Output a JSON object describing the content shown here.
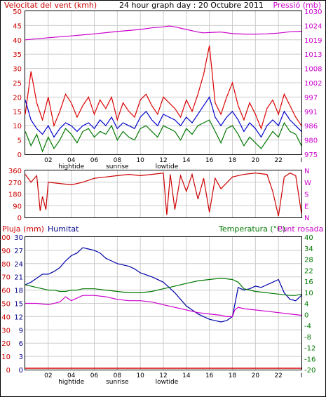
{
  "chart_data": [
    {
      "type": "line",
      "title": "24 hour graph day : 20 Octubre 2011",
      "left_axis_label": "Velocitat del vent (kmh)",
      "right_axis_label": "Pressió (mb)",
      "left_ticks": [
        "0",
        "5",
        "10",
        "15",
        "20",
        "25",
        "30",
        "35",
        "40",
        "45",
        "50"
      ],
      "right_ticks": [
        "975",
        "980",
        "986",
        "991",
        "997",
        "1002",
        "1008",
        "1013",
        "1019",
        "1024",
        "1030"
      ],
      "x_ticks": [
        "02",
        "04",
        "06",
        "08",
        "10",
        "12",
        "14",
        "16",
        "18",
        "20",
        "22"
      ],
      "event_labels": [
        {
          "text": "hightide",
          "x": 4
        },
        {
          "text": "sunrise",
          "x": 8
        },
        {
          "text": "lowtide",
          "x": 12.3
        }
      ],
      "xlim": [
        0,
        24
      ],
      "ylim": [
        0,
        50
      ],
      "y2lim": [
        975,
        1030
      ],
      "series": [
        {
          "color": "#cc00cc",
          "axis": "right",
          "x": [
            0,
            2,
            4,
            6,
            8,
            10,
            11,
            12,
            12.5,
            13,
            14,
            15,
            15.5,
            16,
            17,
            18,
            19,
            20,
            21,
            22,
            23,
            24
          ],
          "y": [
            1019,
            1019.8,
            1020.5,
            1021.3,
            1022.2,
            1023,
            1023.6,
            1024,
            1024.3,
            1024,
            1023,
            1022,
            1021.7,
            1021.8,
            1022,
            1021.4,
            1021.2,
            1021.2,
            1021.3,
            1021.6,
            1022.1,
            1022.3
          ]
        },
        {
          "color": "#dd0000",
          "axis": "left",
          "x": [
            0,
            0.5,
            1,
            1.5,
            2,
            2.5,
            3,
            3.5,
            4,
            4.5,
            5,
            5.5,
            6,
            6.5,
            7,
            7.5,
            8,
            8.5,
            9,
            9.5,
            10,
            10.5,
            11,
            11.5,
            12,
            12.5,
            13,
            13.5,
            14,
            14.5,
            15,
            15.5,
            16,
            16.5,
            17,
            17.5,
            18,
            18.5,
            19,
            19.5,
            20,
            20.5,
            21,
            21.5,
            22,
            22.5,
            23,
            23.5,
            24
          ],
          "y": [
            14,
            29,
            18,
            12,
            20,
            10,
            15,
            21,
            18,
            13,
            17,
            20,
            14,
            19,
            16,
            20,
            12,
            18,
            15,
            13,
            19,
            21,
            17,
            14,
            20,
            18,
            16,
            13,
            19,
            15,
            21,
            28,
            38,
            18,
            14,
            20,
            25,
            17,
            12,
            18,
            14,
            9,
            16,
            19,
            14,
            21,
            17,
            13,
            10
          ]
        },
        {
          "color": "#0000cc",
          "axis": "left",
          "x": [
            0,
            0.5,
            1,
            1.5,
            2,
            2.5,
            3,
            3.5,
            4,
            4.5,
            5,
            5.5,
            6,
            6.5,
            7,
            7.5,
            8,
            8.5,
            9,
            9.5,
            10,
            10.5,
            11,
            11.5,
            12,
            12.5,
            13,
            13.5,
            14,
            14.5,
            15,
            15.5,
            16,
            16.5,
            17,
            17.5,
            18,
            18.5,
            19,
            19.5,
            20,
            20.5,
            21,
            21.5,
            22,
            22.5,
            23,
            23.5,
            24
          ],
          "y": [
            19,
            12,
            9,
            7,
            10,
            6,
            9,
            11,
            10,
            8,
            10,
            11,
            9,
            12,
            10,
            13,
            9,
            11,
            10,
            9,
            13,
            15,
            12,
            10,
            14,
            13,
            12,
            10,
            13,
            11,
            14,
            17,
            20,
            13,
            10,
            13,
            15,
            12,
            8,
            11,
            9,
            6,
            10,
            12,
            10,
            15,
            12,
            10,
            8
          ]
        },
        {
          "color": "#007700",
          "axis": "left",
          "x": [
            0,
            0.5,
            1,
            1.5,
            2,
            2.5,
            3,
            3.5,
            4,
            4.5,
            5,
            5.5,
            6,
            6.5,
            7,
            7.5,
            8,
            8.5,
            9,
            9.5,
            10,
            10.5,
            11,
            11.5,
            12,
            12.5,
            13,
            13.5,
            14,
            14.5,
            15,
            15.5,
            16,
            16.5,
            17,
            17.5,
            18,
            18.5,
            19,
            19.5,
            20,
            20.5,
            21,
            21.5,
            22,
            22.5,
            23,
            23.5,
            24
          ],
          "y": [
            8,
            3,
            7,
            1,
            6,
            2,
            5,
            9,
            7,
            4,
            8,
            9,
            6,
            8,
            7,
            10,
            5,
            8,
            6,
            5,
            9,
            10,
            8,
            6,
            10,
            9,
            8,
            5,
            9,
            7,
            10,
            11,
            12,
            8,
            4,
            9,
            10,
            7,
            3,
            6,
            4,
            2,
            5,
            8,
            6,
            11,
            8,
            7,
            3
          ]
        }
      ]
    },
    {
      "type": "line",
      "left_ticks": [
        "0",
        "90",
        "180",
        "270",
        "360"
      ],
      "right_ticks": [
        "N",
        "E",
        "S",
        "W",
        "N"
      ],
      "ylim": [
        0,
        360
      ],
      "xlim": [
        0,
        24
      ],
      "series": [
        {
          "color": "#cc0000",
          "x": [
            0,
            0.5,
            1,
            1.3,
            1.5,
            1.8,
            2,
            3,
            4,
            5,
            6,
            7,
            8,
            9,
            10,
            11,
            12,
            12.3,
            12.6,
            13,
            13.5,
            14,
            14.5,
            15,
            15.5,
            16,
            16.5,
            17,
            18,
            19,
            20,
            21,
            21.5,
            22,
            22.5,
            23,
            23.5,
            24
          ],
          "y": [
            330,
            270,
            320,
            50,
            160,
            60,
            270,
            260,
            250,
            270,
            300,
            310,
            320,
            330,
            320,
            330,
            340,
            20,
            330,
            60,
            320,
            200,
            330,
            140,
            300,
            40,
            300,
            220,
            310,
            330,
            340,
            330,
            200,
            10,
            310,
            340,
            320,
            30
          ]
        }
      ]
    },
    {
      "type": "line",
      "left_axis_label": "Pluja (mm)",
      "left_axis_label_2": "Humitat",
      "right_axis_label": "Temperatura (°C)",
      "right_axis_label_2": "Punt rosada",
      "left_ticks": [
        "0",
        "10",
        "20",
        "30",
        "40",
        "50",
        "60",
        "70",
        "80",
        "90",
        "100"
      ],
      "left_ticks_2": [
        "0",
        "3",
        "6",
        "9",
        "12",
        "15",
        "18",
        "21",
        "24",
        "27",
        "30"
      ],
      "right_ticks": [
        "-20",
        "-16",
        "-12",
        "-8",
        "-4",
        "0",
        "4",
        "10",
        "16",
        "22",
        "28",
        "34",
        "40"
      ],
      "x_ticks": [
        "02",
        "04",
        "06",
        "08",
        "10",
        "12",
        "14",
        "16",
        "18",
        "20",
        "22"
      ],
      "event_labels": [
        {
          "text": "hightide",
          "x": 4
        },
        {
          "text": "sunrise",
          "x": 8
        },
        {
          "text": "lowtide",
          "x": 12.3
        }
      ],
      "xlim": [
        0,
        24
      ],
      "ylim": [
        0,
        100
      ],
      "series": [
        {
          "color": "#0000aa",
          "x": [
            0,
            0.5,
            1,
            1.5,
            2,
            2.5,
            3,
            3.5,
            4,
            4.5,
            5,
            5.5,
            6,
            6.5,
            7,
            7.5,
            8,
            8.5,
            9,
            9.5,
            10,
            11,
            12,
            12.5,
            13,
            13.5,
            14,
            14.5,
            15,
            15.5,
            16,
            16.5,
            17,
            17.5,
            18,
            18.3,
            18.5,
            19,
            19.5,
            20,
            20.5,
            21,
            21.5,
            22,
            22.5,
            23,
            23.5,
            24
          ],
          "y": [
            64,
            66,
            69,
            72,
            72,
            74,
            77,
            82,
            86,
            88,
            92,
            91,
            90,
            88,
            84,
            82,
            80,
            79,
            78,
            76,
            73,
            70,
            66,
            62,
            58,
            53,
            48,
            45,
            42,
            40,
            38,
            37,
            36,
            37,
            40,
            53,
            62,
            60,
            61,
            63,
            62,
            64,
            66,
            68,
            58,
            53,
            52,
            56
          ]
        },
        {
          "color": "#007700",
          "x": [
            0,
            0.5,
            1,
            1.5,
            2,
            2.5,
            3,
            3.5,
            4,
            4.5,
            5,
            6,
            7,
            8,
            9,
            10,
            11,
            12,
            13,
            14,
            15,
            16,
            17,
            18,
            18.5,
            19,
            20,
            21,
            22,
            23,
            23.5,
            24
          ],
          "y": [
            64,
            63,
            62,
            61,
            60,
            60,
            59,
            59,
            60,
            60,
            61,
            61,
            60,
            59,
            58,
            58,
            59,
            61,
            63,
            65,
            67,
            68,
            69,
            68,
            66,
            61,
            59,
            58,
            57,
            56,
            56,
            57
          ]
        },
        {
          "color": "#cc00cc",
          "x": [
            0,
            1,
            2,
            3,
            3.5,
            4,
            4.5,
            5,
            6,
            7,
            8,
            9,
            10,
            11,
            12,
            13,
            14,
            15,
            16,
            17,
            17.5,
            18,
            18.2,
            18.5,
            19,
            20,
            21,
            22,
            23,
            24
          ],
          "y": [
            50,
            50,
            49,
            51,
            55,
            52,
            54,
            56,
            56,
            55,
            53,
            52,
            52,
            51,
            49,
            47,
            45,
            43,
            42,
            41,
            40,
            40,
            45,
            47,
            46,
            45,
            44,
            43,
            42,
            41
          ]
        }
      ]
    }
  ]
}
